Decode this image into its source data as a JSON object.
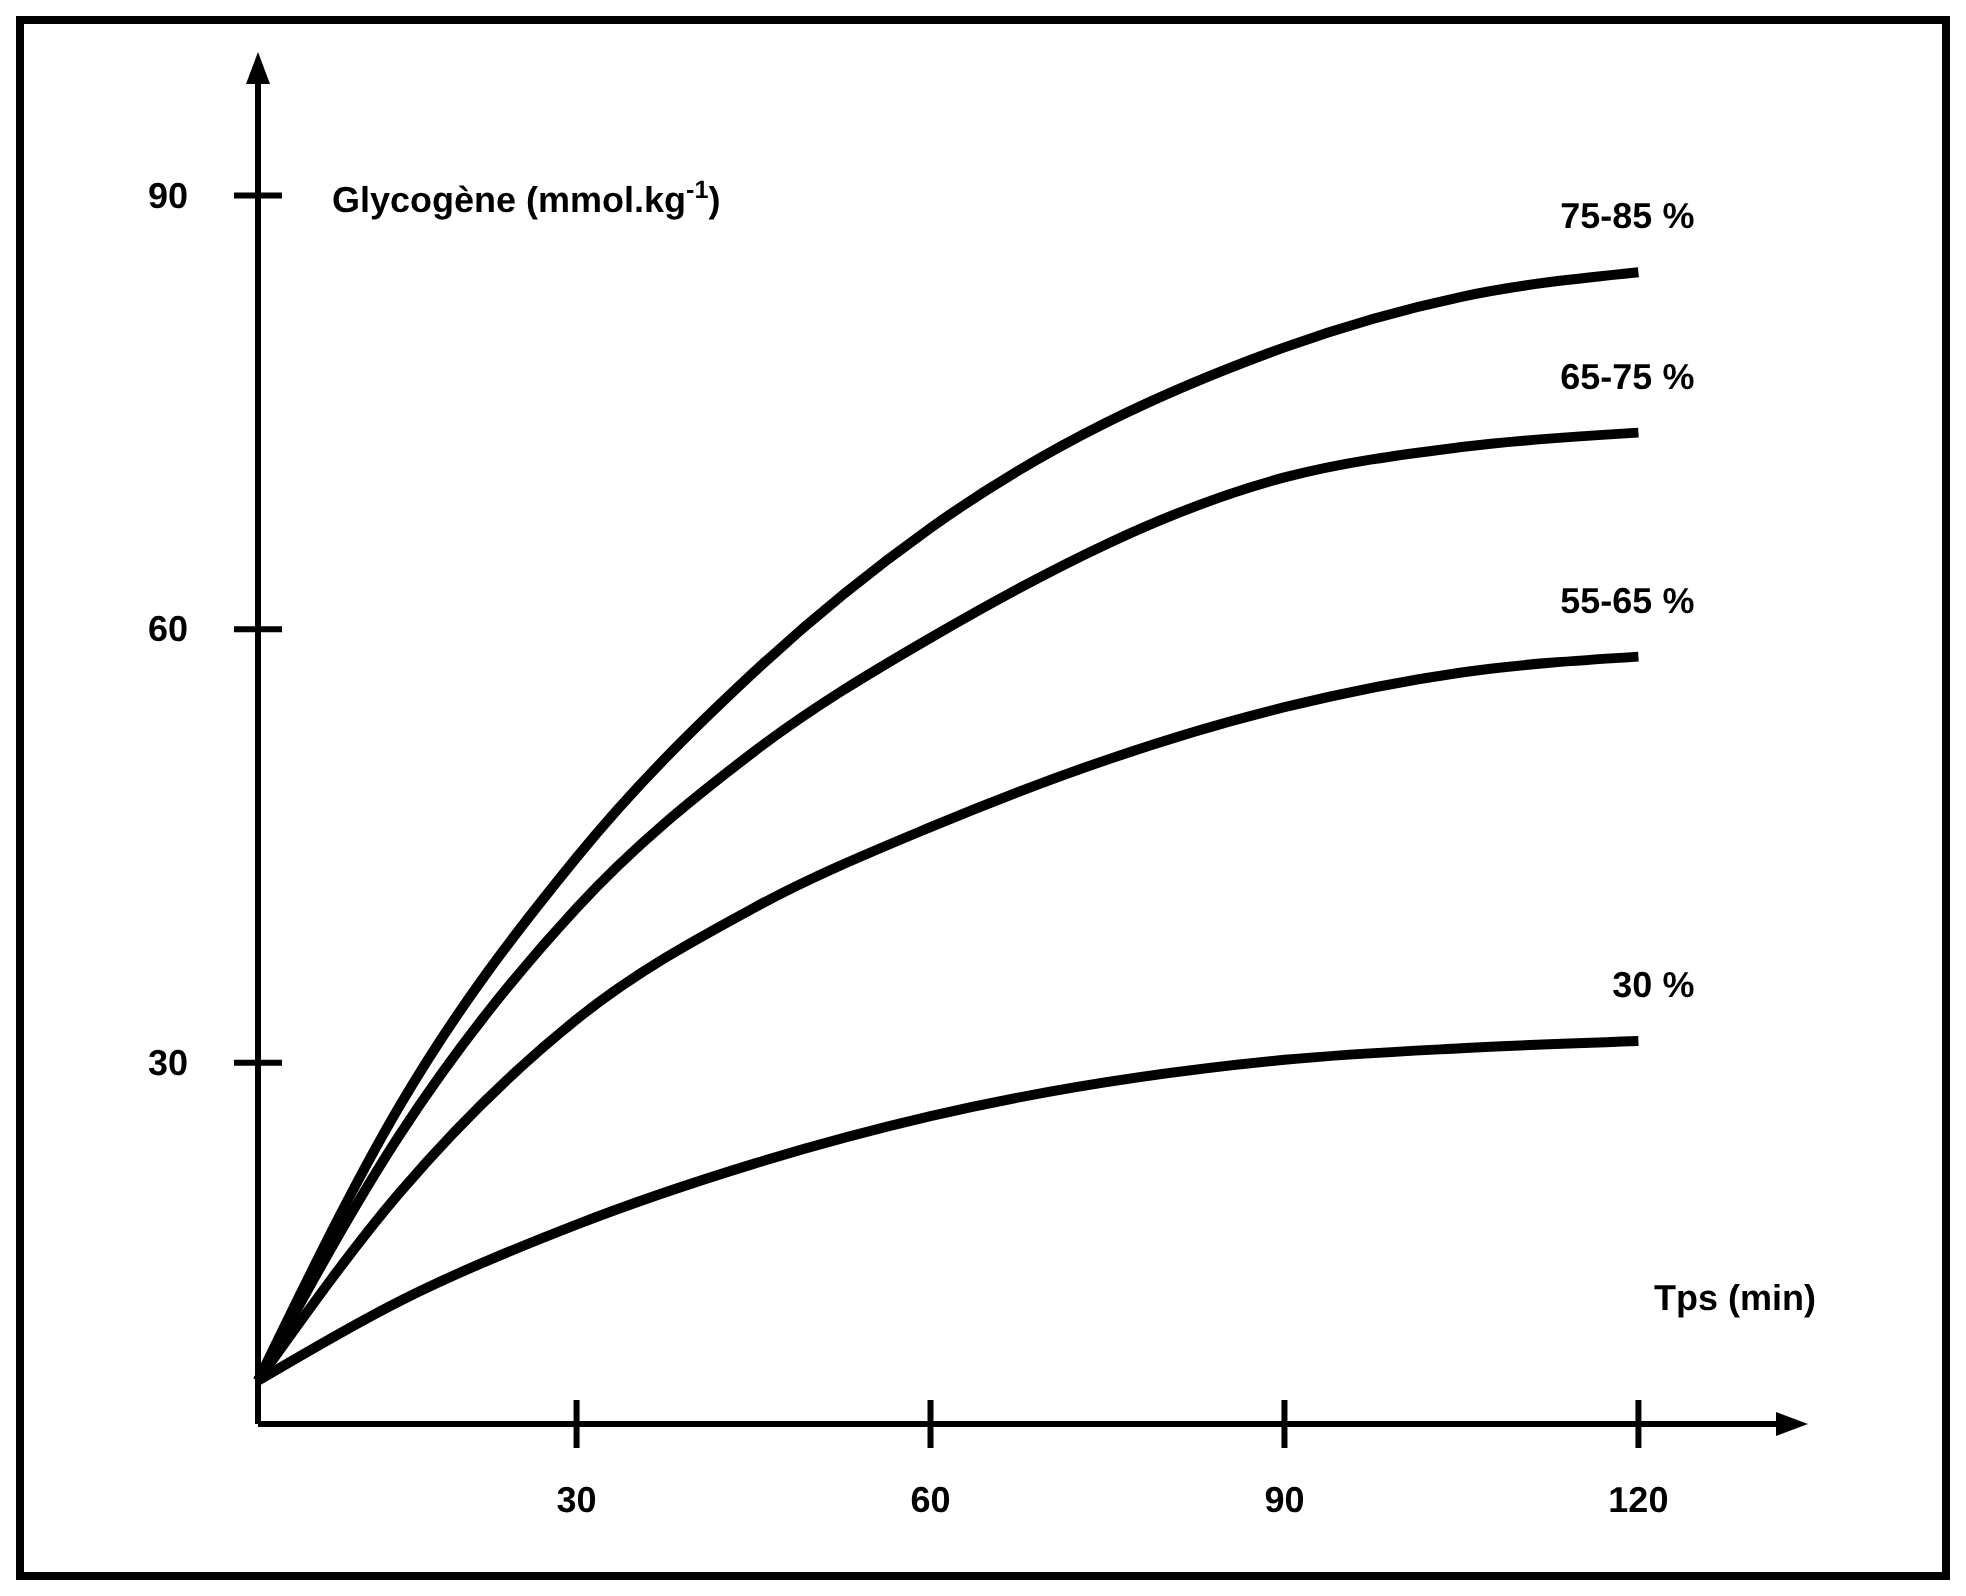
{
  "chart_data": {
    "type": "line",
    "xlabel": "Tps (min)",
    "ylabel": "Glycogène (mmol.kg$^{-1}$)",
    "x": [
      3,
      15,
      30,
      45,
      60,
      90,
      105,
      120
    ],
    "xlim": [
      3,
      132
    ],
    "xticks": [
      30,
      60,
      90,
      120
    ],
    "ylim": [
      5,
      98
    ],
    "yticks": [
      30,
      60,
      90
    ],
    "grid": false,
    "legend": false,
    "marker": "none",
    "line_style": "solid",
    "series": [
      {
        "name": "75-85 %",
        "color": "#000000",
        "values": [
          8,
          27,
          44.2,
          57,
          67,
          79.5,
          83,
          84.7
        ]
      },
      {
        "name": "65-75 %",
        "color": "#000000",
        "values": [
          8,
          25,
          40.7,
          51.5,
          59.4,
          70.5,
          72.6,
          73.6
        ]
      },
      {
        "name": "55-65 %",
        "color": "#000000",
        "values": [
          8,
          21,
          33,
          40.7,
          46.3,
          54.6,
          57,
          58.1
        ]
      },
      {
        "name": "30 %",
        "color": "#000000",
        "values": [
          8,
          13.5,
          18.8,
          23,
          26.3,
          30.2,
          31,
          31.5
        ]
      }
    ]
  }
}
